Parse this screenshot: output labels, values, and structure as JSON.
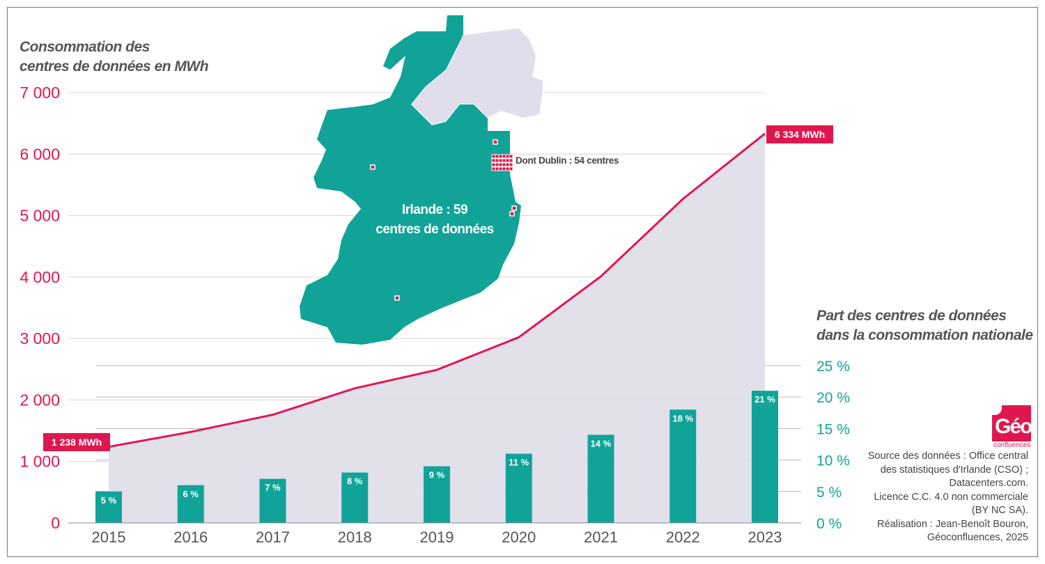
{
  "chart_data": {
    "type": "bar+line",
    "categories": [
      "2015",
      "2016",
      "2017",
      "2018",
      "2019",
      "2020",
      "2021",
      "2022",
      "2023"
    ],
    "series": [
      {
        "name": "Consommation des centres de données en MWh",
        "type": "area-line",
        "axis": "left",
        "values": [
          1238,
          1480,
          1760,
          2190,
          2490,
          3020,
          4010,
          5270,
          6334
        ]
      },
      {
        "name": "Part des centres de données dans la consommation nationale",
        "type": "bar",
        "axis": "right",
        "values": [
          5,
          6,
          7,
          8,
          9,
          11,
          14,
          18,
          21
        ],
        "labels": [
          "5 %",
          "6 %",
          "7 %",
          "8 %",
          "9 %",
          "11 %",
          "14 %",
          "18 %",
          "21 %"
        ]
      }
    ],
    "left_axis": {
      "title_lines": [
        "Consommation des",
        "centres de données en MWh"
      ],
      "ylim": [
        0,
        7000
      ],
      "ticks": [
        0,
        1000,
        2000,
        3000,
        4000,
        5000,
        6000,
        7000
      ],
      "tick_labels": [
        "0",
        "1 000",
        "2 000",
        "3 000",
        "4 000",
        "5 000",
        "6 000",
        "7 000"
      ]
    },
    "right_axis": {
      "title_lines": [
        "Part des centres de données",
        "dans la consommation nationale"
      ],
      "ylim": [
        0,
        25
      ],
      "ticks": [
        0,
        5,
        10,
        15,
        20,
        25
      ],
      "tick_labels": [
        "0 %",
        "5 %",
        "10 %",
        "15 %",
        "20 %",
        "25 %"
      ]
    },
    "annotations": {
      "start": "1 238 MWh",
      "end": "6 334 MWh"
    },
    "grid": true,
    "colors": {
      "line": "#e0174f",
      "area": "#dfdeea",
      "bar": "#12a398",
      "left_axis": "#e0174f",
      "right_axis": "#12a398"
    }
  },
  "map": {
    "label_lines": [
      "Irlande : 59",
      "centres de données"
    ],
    "dublin_label": "Dont Dublin : 54 centres",
    "colors": {
      "ireland": "#12a398",
      "northern_ireland": "#dfdeea",
      "centre": "#e0174f"
    }
  },
  "logo": {
    "text": "Géo",
    "sub": "confluences"
  },
  "source_lines": [
    "Source des données : Office central",
    "des statistiques d'Irlande (CSO) ;",
    "Datacenters.com.",
    "Licence C.C. 4.0 non commerciale",
    "(BY NC SA).",
    "Réalisation : Jean-Benoît Bouron,",
    "Géoconfluences, 2025"
  ]
}
